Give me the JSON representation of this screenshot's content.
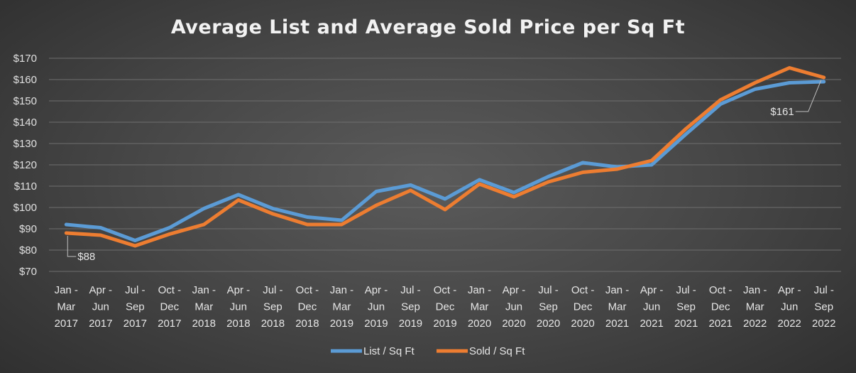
{
  "chart_data": {
    "type": "line",
    "title": "Average List and Average Sold Price per Sq Ft",
    "xlabel": "",
    "ylabel": "",
    "ylim": [
      70,
      170
    ],
    "yticks": [
      "$70",
      "$80",
      "$90",
      "$100",
      "$110",
      "$120",
      "$130",
      "$140",
      "$150",
      "$160",
      "$170"
    ],
    "categories": [
      [
        "Jan -",
        "Mar",
        "2017"
      ],
      [
        "Apr -",
        "Jun",
        "2017"
      ],
      [
        "Jul -",
        "Sep",
        "2017"
      ],
      [
        "Oct -",
        "Dec",
        "2017"
      ],
      [
        "Jan -",
        "Mar",
        "2018"
      ],
      [
        "Apr -",
        "Jun",
        "2018"
      ],
      [
        "Jul -",
        "Sep",
        "2018"
      ],
      [
        "Oct -",
        "Dec",
        "2018"
      ],
      [
        "Jan -",
        "Mar",
        "2019"
      ],
      [
        "Apr -",
        "Jun",
        "2019"
      ],
      [
        "Jul -",
        "Sep",
        "2019"
      ],
      [
        "Oct -",
        "Dec",
        "2019"
      ],
      [
        "Jan -",
        "Mar",
        "2020"
      ],
      [
        "Apr -",
        "Jun",
        "2020"
      ],
      [
        "Jul -",
        "Sep",
        "2020"
      ],
      [
        "Oct -",
        "Dec",
        "2020"
      ],
      [
        "Jan -",
        "Mar",
        "2021"
      ],
      [
        "Apr -",
        "Jun",
        "2021"
      ],
      [
        "Jul -",
        "Sep",
        "2021"
      ],
      [
        "Oct -",
        "Dec",
        "2021"
      ],
      [
        "Jan -",
        "Mar",
        "2022"
      ],
      [
        "Apr -",
        "Jun",
        "2022"
      ],
      [
        "Jul -",
        "Sep",
        "2022"
      ]
    ],
    "series": [
      {
        "name": "List / Sq Ft",
        "color": "#5b9bd5",
        "values": [
          92,
          90.5,
          84.5,
          90.5,
          99.5,
          106,
          99.5,
          95.5,
          94,
          107.5,
          110.5,
          104,
          113,
          107,
          114.5,
          121,
          119,
          120,
          134.5,
          148.5,
          155.5,
          158.5,
          159
        ]
      },
      {
        "name": "Sold / Sq Ft",
        "color": "#ed7d31",
        "values": [
          88,
          87,
          82,
          87.5,
          92,
          103.5,
          97,
          92,
          92,
          101,
          108,
          99,
          111,
          105,
          112,
          116.5,
          118,
          122,
          137,
          150.5,
          158.5,
          165.5,
          161
        ]
      }
    ],
    "annotations": [
      {
        "series": 1,
        "index": 0,
        "label": "$88"
      },
      {
        "series": 1,
        "index": 22,
        "label": "$161"
      }
    ],
    "legend": "bottom",
    "grid": true
  }
}
